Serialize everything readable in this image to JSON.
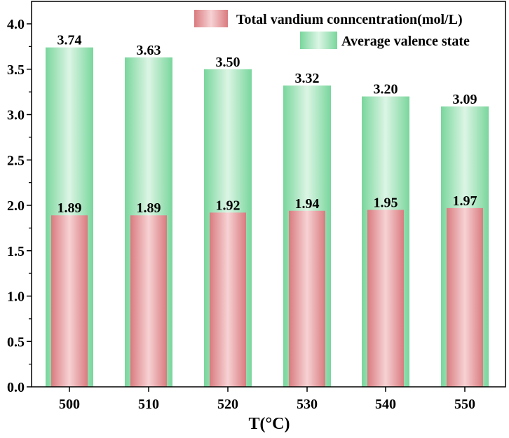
{
  "chart_data": {
    "type": "bar",
    "title": "",
    "xlabel": "T(°C)",
    "ylabel": "",
    "ylim": [
      0,
      4.0
    ],
    "yticks": [
      "0.0",
      "0.5",
      "1.0",
      "1.5",
      "2.0",
      "2.5",
      "3.0",
      "3.5",
      "4.0"
    ],
    "categories": [
      "500",
      "510",
      "520",
      "530",
      "540",
      "550"
    ],
    "legend_position": "top-right",
    "series": [
      {
        "name": "Average valence state",
        "values": [
          3.74,
          3.63,
          3.5,
          3.32,
          3.2,
          3.09
        ],
        "labels": [
          "3.74",
          "3.63",
          "3.50",
          "3.32",
          "3.20",
          "3.09"
        ],
        "color_edge": "#79d69c",
        "color_center": "#dcf5e5"
      },
      {
        "name": "Total vandium conncentration(mol/L)",
        "values": [
          1.89,
          1.89,
          1.92,
          1.94,
          1.95,
          1.97
        ],
        "labels": [
          "1.89",
          "1.89",
          "1.92",
          "1.94",
          "1.95",
          "1.97"
        ],
        "color_edge": "#d97b7f",
        "color_center": "#f7d2d4"
      }
    ]
  }
}
